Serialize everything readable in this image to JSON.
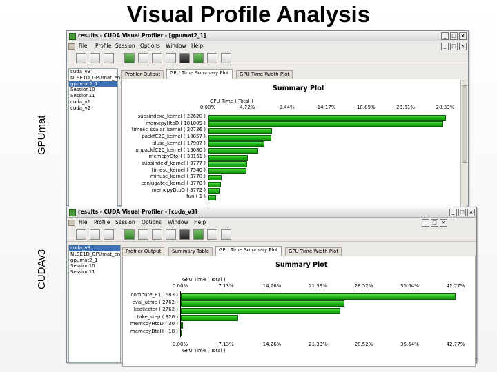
{
  "slide": {
    "title": "Visual Profile Analysis",
    "label_top": "GPUmat",
    "label_bottom": "CUDAv3"
  },
  "menu": [
    "File",
    "Profile",
    "Session",
    "Options",
    "Window",
    "Help"
  ],
  "window_top": {
    "title": "results - CUDA Visual Profiler - [gpumat2_1]",
    "tree": [
      "cuda_v3",
      "NLSE1D_GPUmat_en",
      "gpumat2_1",
      "Session10",
      "Session11",
      "cuda_v1",
      "cuda_v2"
    ],
    "tree_selected": 2,
    "tabs": [
      "Profiler Output",
      "GPU Time Summary Plot",
      "GPU Time Width Plot"
    ],
    "active_tab": 1
  },
  "window_bottom": {
    "title": "results - CUDA Visual Profiler - [cuda_v3]",
    "tree": [
      "cuda_v3",
      "NLSE1D_GPUmat_en",
      "gpumat2_1",
      "Session10",
      "Session11"
    ],
    "tree_selected": 0,
    "tabs": [
      "Profiler Output",
      "Summary Table",
      "GPU Time Summary Plot",
      "GPU Time Width Plot"
    ],
    "active_tab": 2
  },
  "chart_data": [
    {
      "type": "bar",
      "orientation": "horizontal",
      "title": "Summary Plot",
      "xlabel_top": "GPU Time ( Total )",
      "ticks": [
        "0.00%",
        "4.72%",
        "9.44%",
        "14.17%",
        "18.89%",
        "23.61%",
        "28.33%"
      ],
      "xlim": [
        0,
        28.33
      ],
      "categories": [
        "subsindexc_kernel ( 22620 )",
        "memcpyHtoD ( 181009 )",
        "timesc_scalar_kernel ( 20736 )",
        "packfC2C_kernel ( 18857 )",
        "plusc_kernel ( 17907 )",
        "unpackfC2C_kernel ( 15080 )",
        "memcpyDtoH ( 30161 )",
        "subsindexf_kernel ( 3777 )",
        "timesc_kernel ( 7540 )",
        "minusc_kernel ( 3770 )",
        "conjugatec_kernel ( 3770 )",
        "memcpyDtoD ( 3772 )",
        "fun ( 1 )"
      ],
      "values": [
        28.33,
        28.0,
        7.6,
        7.5,
        6.7,
        5.9,
        4.7,
        4.6,
        4.5,
        1.6,
        1.5,
        1.3,
        0.9
      ]
    },
    {
      "type": "bar",
      "orientation": "horizontal",
      "title": "Summary Plot",
      "xlabel_top": "GPU Time ( Total )",
      "xlabel_bottom": "GPU Time ( Total )",
      "ticks": [
        "0.00%",
        "7.13%",
        "14.26%",
        "21.39%",
        "28.52%",
        "35.64%",
        "42.77%"
      ],
      "xlim": [
        0,
        42.77
      ],
      "categories": [
        "compute_F ( 1683 )",
        "eval_utmp ( 2762 )",
        "kcollector ( 2762 )",
        "take_step ( 920 )",
        "memcpyHtoD ( 30 )",
        "memcpyDtoH ( 18 )"
      ],
      "values": [
        42.7,
        25.4,
        24.8,
        8.9,
        0.3,
        0.2
      ]
    }
  ]
}
